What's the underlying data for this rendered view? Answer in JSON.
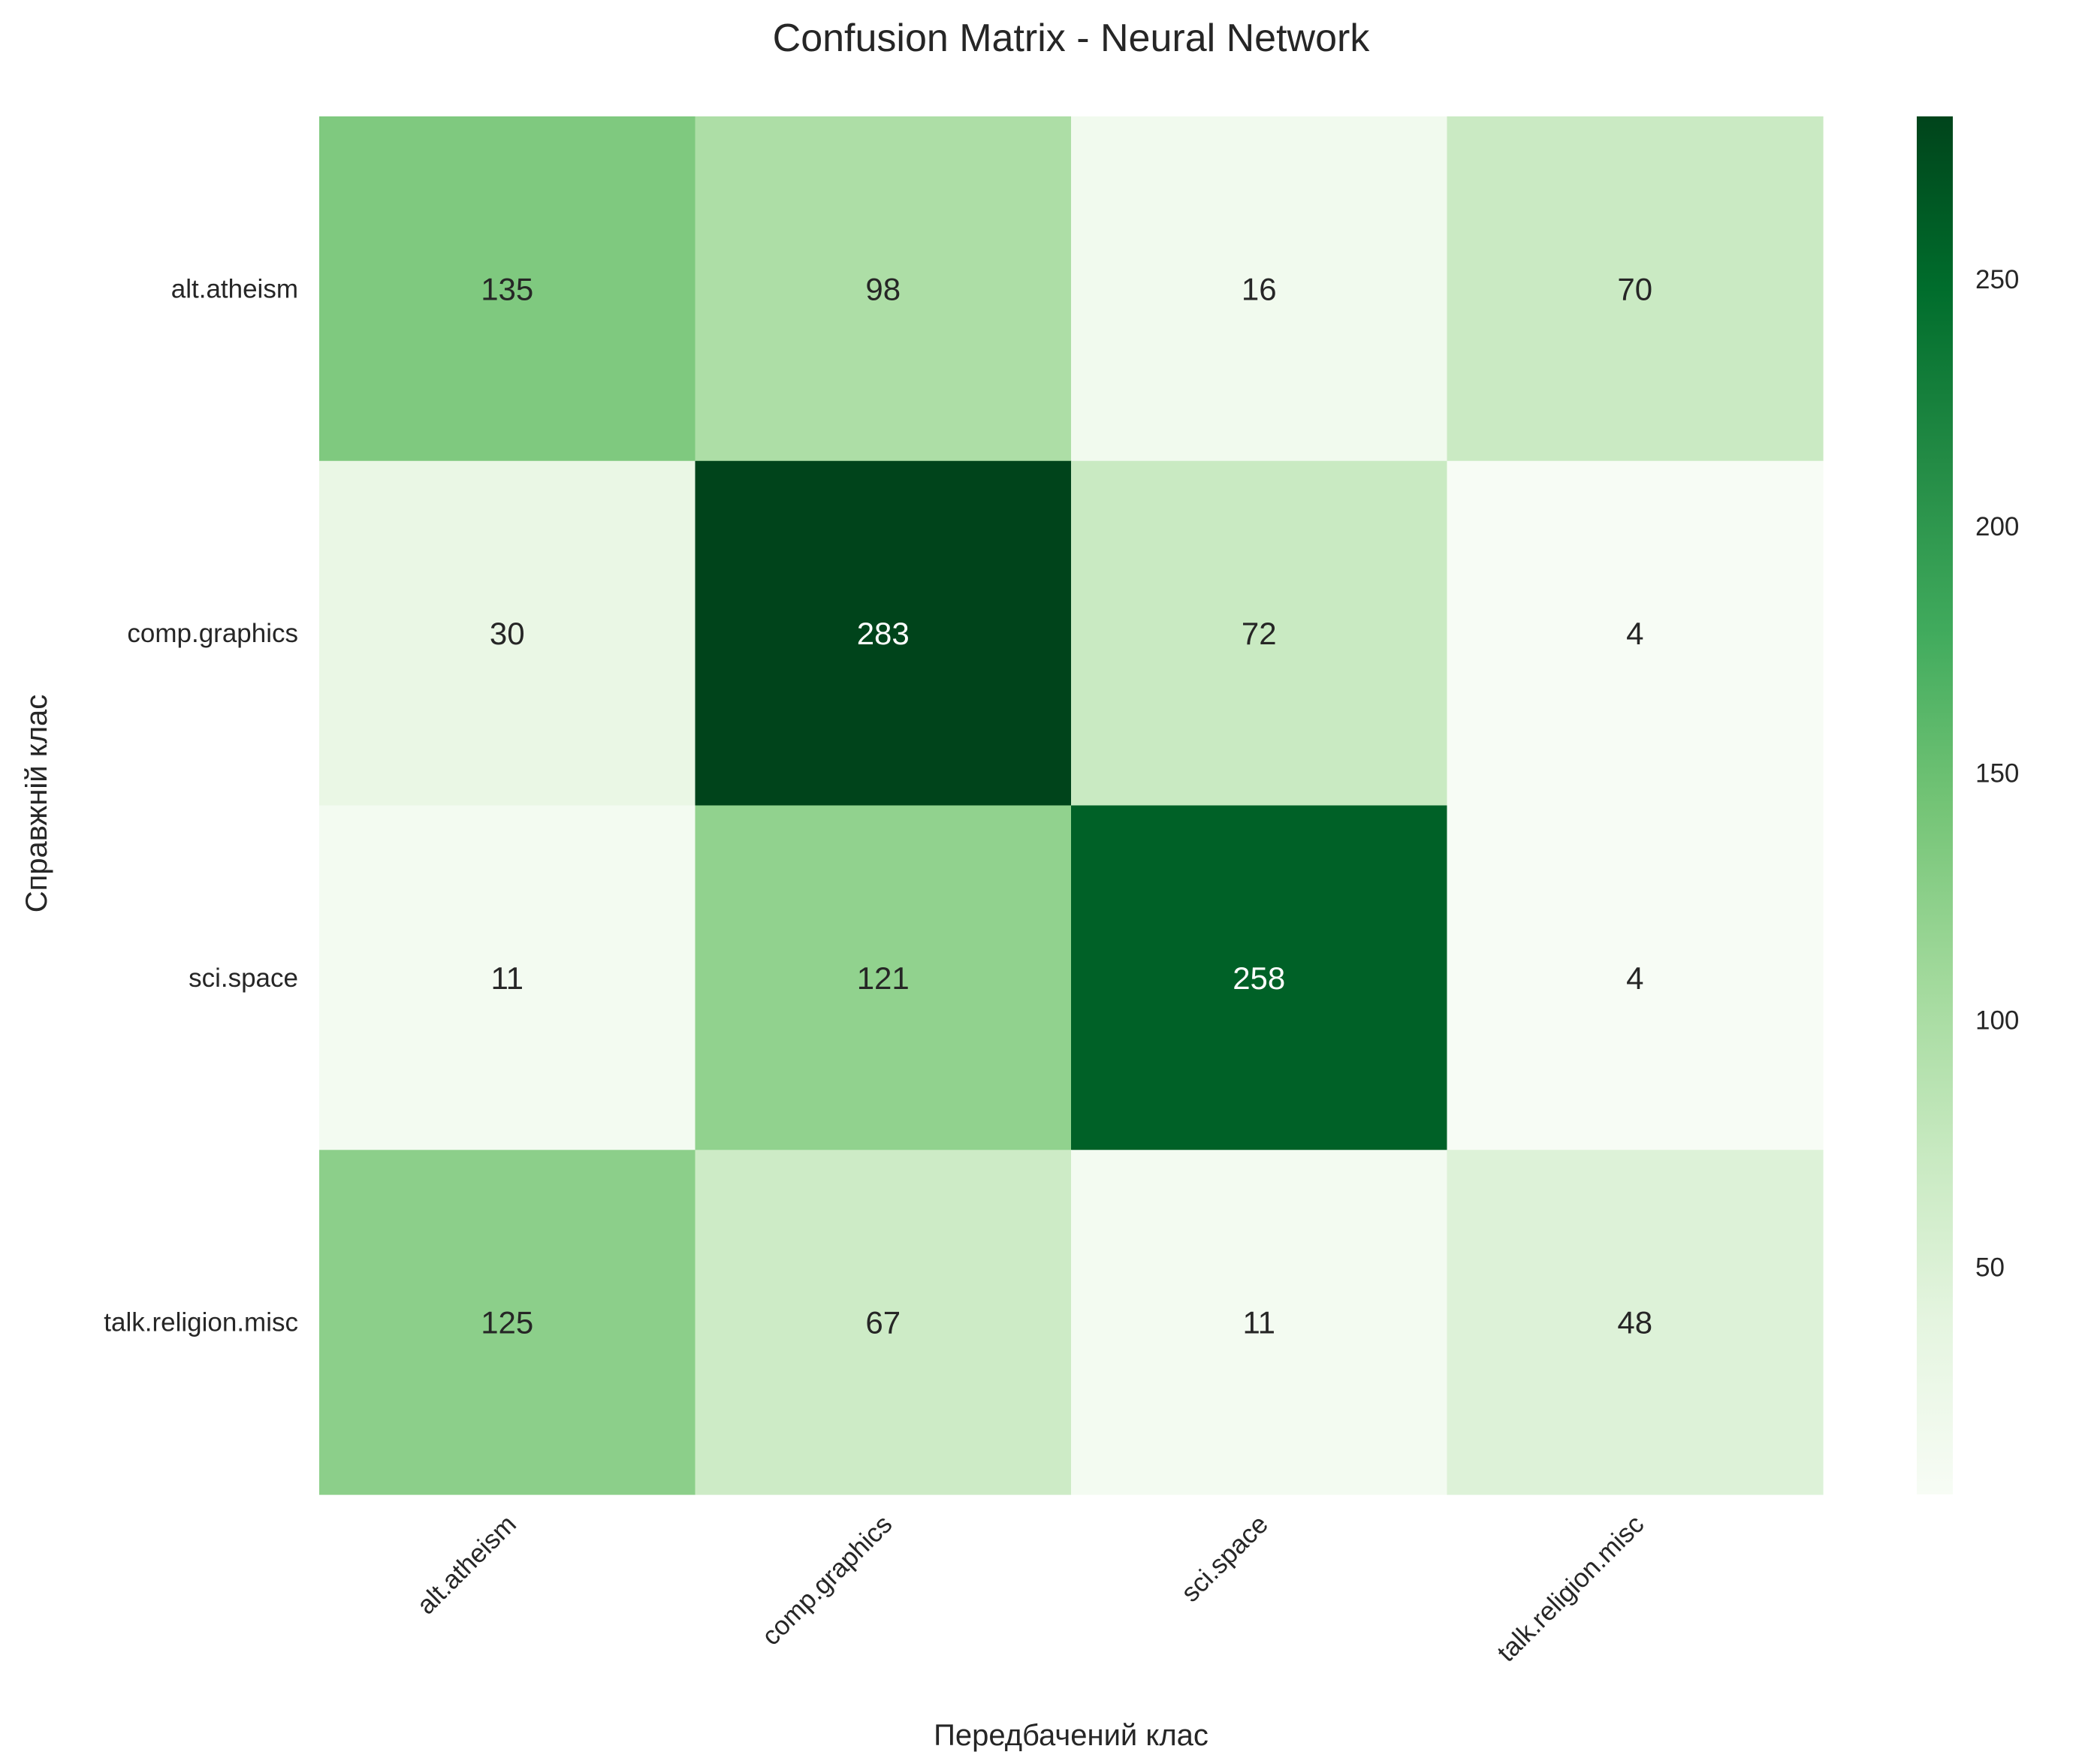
{
  "chart_data": {
    "type": "heatmap",
    "title": "Confusion Matrix - Neural Network",
    "xlabel": "Передбачений клас",
    "ylabel": "Справжній клас",
    "x_categories": [
      "alt.atheism",
      "comp.graphics",
      "sci.space",
      "talk.religion.misc"
    ],
    "y_categories": [
      "alt.atheism",
      "comp.graphics",
      "sci.space",
      "talk.religion.misc"
    ],
    "values": [
      [
        135,
        98,
        16,
        70
      ],
      [
        30,
        283,
        72,
        4
      ],
      [
        11,
        121,
        258,
        4
      ],
      [
        125,
        67,
        11,
        48
      ]
    ],
    "colormap": "Greens",
    "vmin": 4,
    "vmax": 283,
    "colorbar_ticks": [
      50,
      100,
      150,
      200,
      250
    ],
    "grid": false
  }
}
